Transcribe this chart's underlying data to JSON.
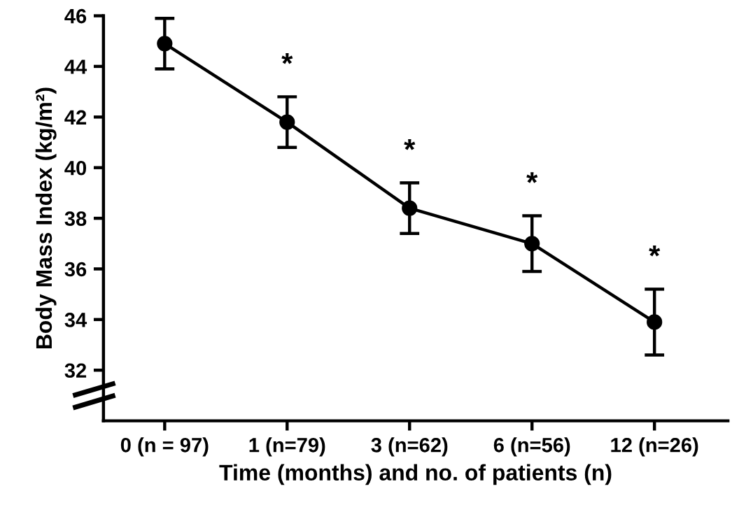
{
  "chart_data": {
    "type": "line",
    "xlabel": "Time (months) and no. of patients (n)",
    "ylabel": "Body Mass Index (kg/m²)",
    "categories": [
      "0 (n = 97)",
      "1 (n=79)",
      "3 (n=62)",
      "6 (n=56)",
      "12 (n=26)"
    ],
    "values": [
      44.9,
      41.8,
      38.4,
      37.0,
      33.9
    ],
    "errors": [
      1.0,
      1.0,
      1.0,
      1.1,
      1.3
    ],
    "color": "#000000",
    "marker": "circle",
    "line_style": "solid",
    "ylim": [
      30,
      46
    ],
    "yticks": [
      32,
      34,
      36,
      38,
      40,
      42,
      44,
      46
    ],
    "grid": false,
    "legend": false,
    "annotations": [
      "*",
      "*",
      "*",
      "*"
    ]
  }
}
